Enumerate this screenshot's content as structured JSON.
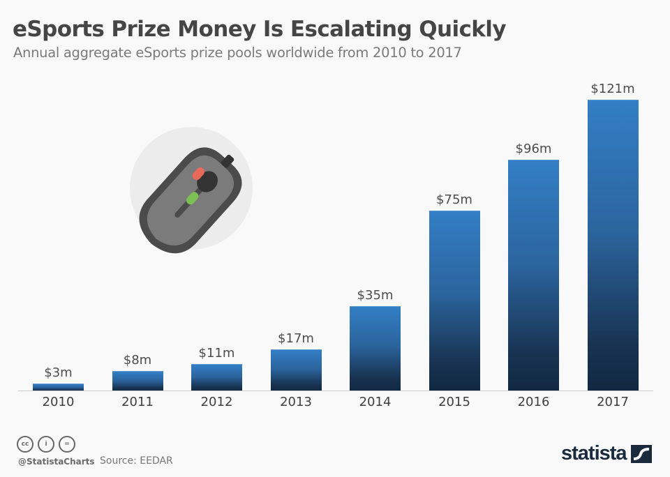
{
  "header": {
    "title": "eSports Prize Money Is Escalating Quickly",
    "subtitle": "Annual aggregate eSports prize pools worldwide from 2010 to 2017"
  },
  "chart_data": {
    "type": "bar",
    "title": "eSports Prize Money Is Escalating Quickly",
    "subtitle": "Annual aggregate eSports prize pools worldwide from 2010 to 2017",
    "categories": [
      "2010",
      "2011",
      "2012",
      "2013",
      "2014",
      "2015",
      "2016",
      "2017"
    ],
    "values": [
      3,
      8,
      11,
      17,
      35,
      75,
      96,
      121
    ],
    "value_labels": [
      "$3m",
      "$8m",
      "$11m",
      "$17m",
      "$35m",
      "$75m",
      "$96m",
      "$121m"
    ],
    "unit": "million U.S. dollars",
    "xlabel": "",
    "ylabel": "",
    "ylim": [
      0,
      121
    ],
    "grid": false,
    "legend": "none",
    "bar_color_top": "#337ec5",
    "bar_color_bottom": "#102842"
  },
  "illustration": {
    "icon": "gaming-mouse-icon",
    "circle_color": "#ececec",
    "body_color": "#4b4b4b",
    "top_color": "#7a7a7a",
    "led_red": "#e8695a",
    "led_green": "#7cc054"
  },
  "footer": {
    "license_icons": [
      "cc-icon",
      "attribution-icon",
      "no-derivatives-icon"
    ],
    "license_glyphs": [
      "cc",
      "i",
      "="
    ],
    "handle": "@StatistaCharts",
    "source": "Source: EEDAR",
    "brand": "statista",
    "brand_color": "#1a2b3e"
  }
}
